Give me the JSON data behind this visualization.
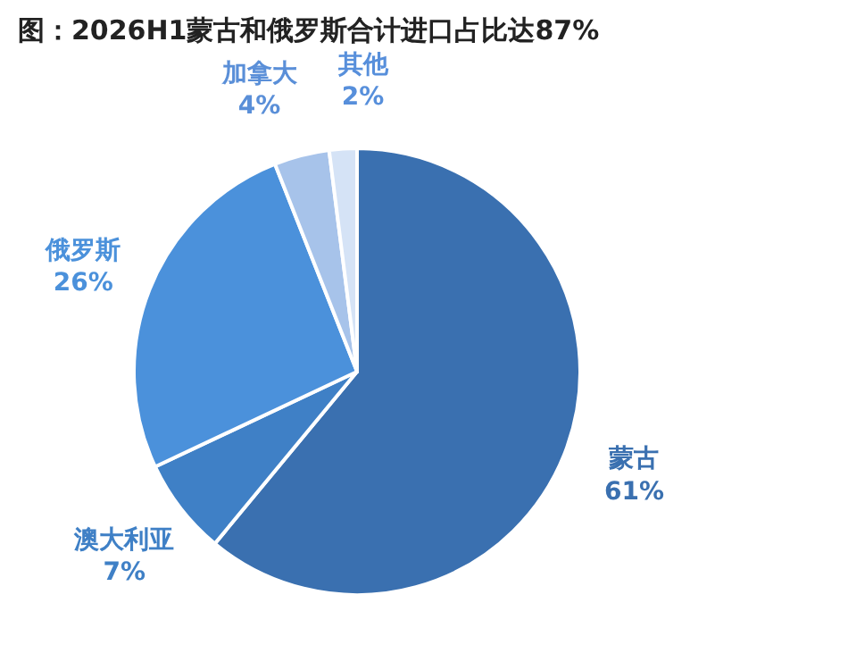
{
  "chart_data": {
    "type": "pie",
    "title": "图：2026H1蒙古和俄罗斯合计进口占比达87%",
    "categories": [
      "蒙古",
      "澳大利亚",
      "俄罗斯",
      "加拿大",
      "其他"
    ],
    "values": [
      61,
      7,
      26,
      4,
      2
    ],
    "colors": [
      "#3a70b0",
      "#3f80c6",
      "#4b91db",
      "#a7c3ea",
      "#d5e3f6"
    ],
    "value_labels": [
      "61%",
      "7%",
      "26%",
      "4%",
      "2%"
    ]
  }
}
